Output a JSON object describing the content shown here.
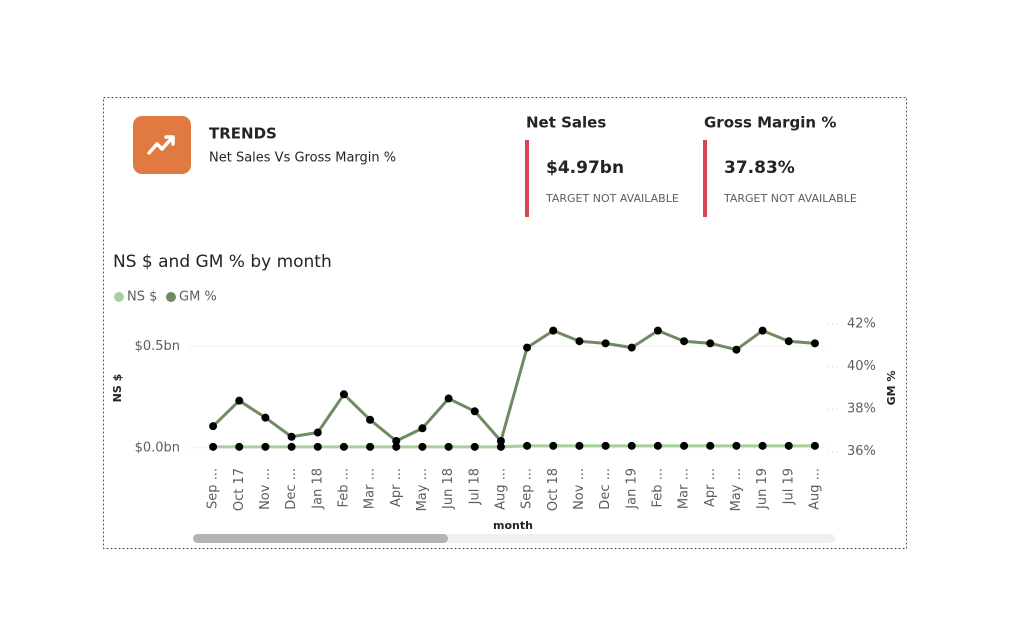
{
  "header": {
    "title": "TRENDS",
    "subtitle": "Net Sales Vs Gross Margin %"
  },
  "kpis": [
    {
      "title": "Net Sales",
      "value": "$4.97bn",
      "status": "TARGET NOT AVAILABLE"
    },
    {
      "title": "Gross Margin %",
      "value": "37.83%",
      "status": "TARGET NOT AVAILABLE"
    }
  ],
  "chart_data": {
    "type": "line",
    "title": "NS $ and GM % by month",
    "x_label": "month",
    "y_label": "NS $",
    "y2_label": "GM %",
    "categories": [
      "Sep ...",
      "Oct 17",
      "Nov ...",
      "Dec ...",
      "Jan 18",
      "Feb ...",
      "Mar ...",
      "Apr ...",
      "May ...",
      "Jun 18",
      "Jul 18",
      "Aug ...",
      "Sep ...",
      "Oct 18",
      "Nov ...",
      "Dec ...",
      "Jan 19",
      "Feb ...",
      "Mar ...",
      "Apr ...",
      "May ...",
      "Jun 19",
      "Jul 19",
      "Aug ..."
    ],
    "series": [
      {
        "name": "NS $",
        "color": "#a7d19a",
        "values": [
          0.005,
          0.005,
          0.005,
          0.005,
          0.005,
          0.005,
          0.005,
          0.005,
          0.005,
          0.005,
          0.005,
          0.005,
          0.01,
          0.01,
          0.01,
          0.01,
          0.01,
          0.01,
          0.01,
          0.01,
          0.01,
          0.01,
          0.01,
          0.01
        ]
      },
      {
        "name": "GM %",
        "color": "#6e8b61",
        "axis": "y2",
        "values": [
          37.2,
          38.4,
          37.6,
          36.7,
          36.9,
          38.7,
          37.5,
          36.5,
          37.1,
          38.5,
          37.9,
          36.5,
          40.9,
          41.7,
          41.2,
          41.1,
          40.9,
          41.7,
          41.2,
          41.1,
          40.8,
          41.7,
          41.2,
          41.1
        ]
      }
    ],
    "ylim": [
      -0.05,
      0.63
    ],
    "yticks": [
      {
        "value": 0,
        "label": "$0.0bn"
      },
      {
        "value": 0.5,
        "label": "$0.5bn"
      }
    ],
    "y2lim": [
      35.7,
      42.2
    ],
    "y2ticks": [
      {
        "value": 36,
        "label": "36%"
      },
      {
        "value": 38,
        "label": "38%"
      },
      {
        "value": 40,
        "label": "40%"
      },
      {
        "value": 42,
        "label": "42%"
      }
    ],
    "grid": true
  }
}
